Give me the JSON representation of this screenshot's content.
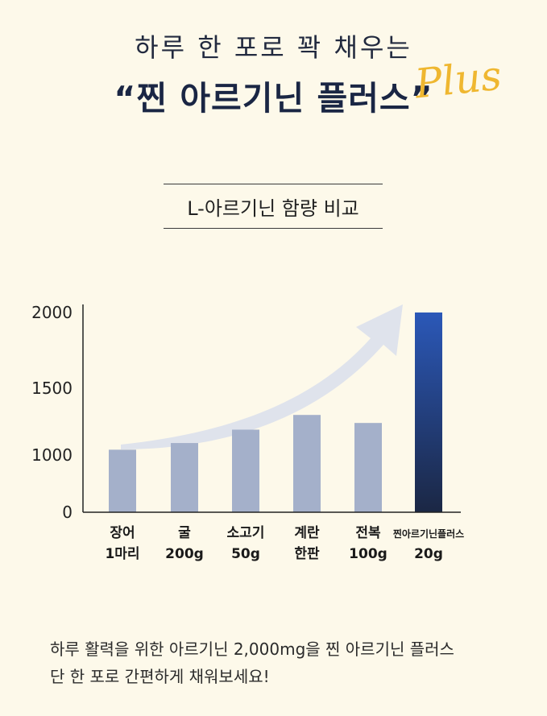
{
  "header": {
    "subtitle": "하루 한 포로 꽉 채우는",
    "title": "“찐 아르기닌 플러스”",
    "plus_script": "Plus"
  },
  "section": {
    "label": "L-아르기닌 함량 비교"
  },
  "chart_data": {
    "type": "bar",
    "categories": [
      [
        "장어",
        "1마리"
      ],
      [
        "굴",
        "200g"
      ],
      [
        "소고기",
        "50g"
      ],
      [
        "계란",
        "한판"
      ],
      [
        "전복",
        "100g"
      ],
      [
        "찐아르기닌플러스",
        "20g"
      ]
    ],
    "values": [
      1040,
      1090,
      1190,
      1300,
      1240,
      2000
    ],
    "yticks": [
      0,
      1000,
      1500,
      2000
    ],
    "highlight_index": 5,
    "colors": {
      "bar": "#a4b0ca",
      "highlight_top": "#2b58b8",
      "highlight_bottom": "#1b2744",
      "arrow": "#dfe3ec"
    }
  },
  "caption": {
    "line1": "하루 활력을 위한 아르기닌 2,000mg을 찐 아르기닌 플러스",
    "line2": "단 한 포로 간편하게 채워보세요!"
  }
}
